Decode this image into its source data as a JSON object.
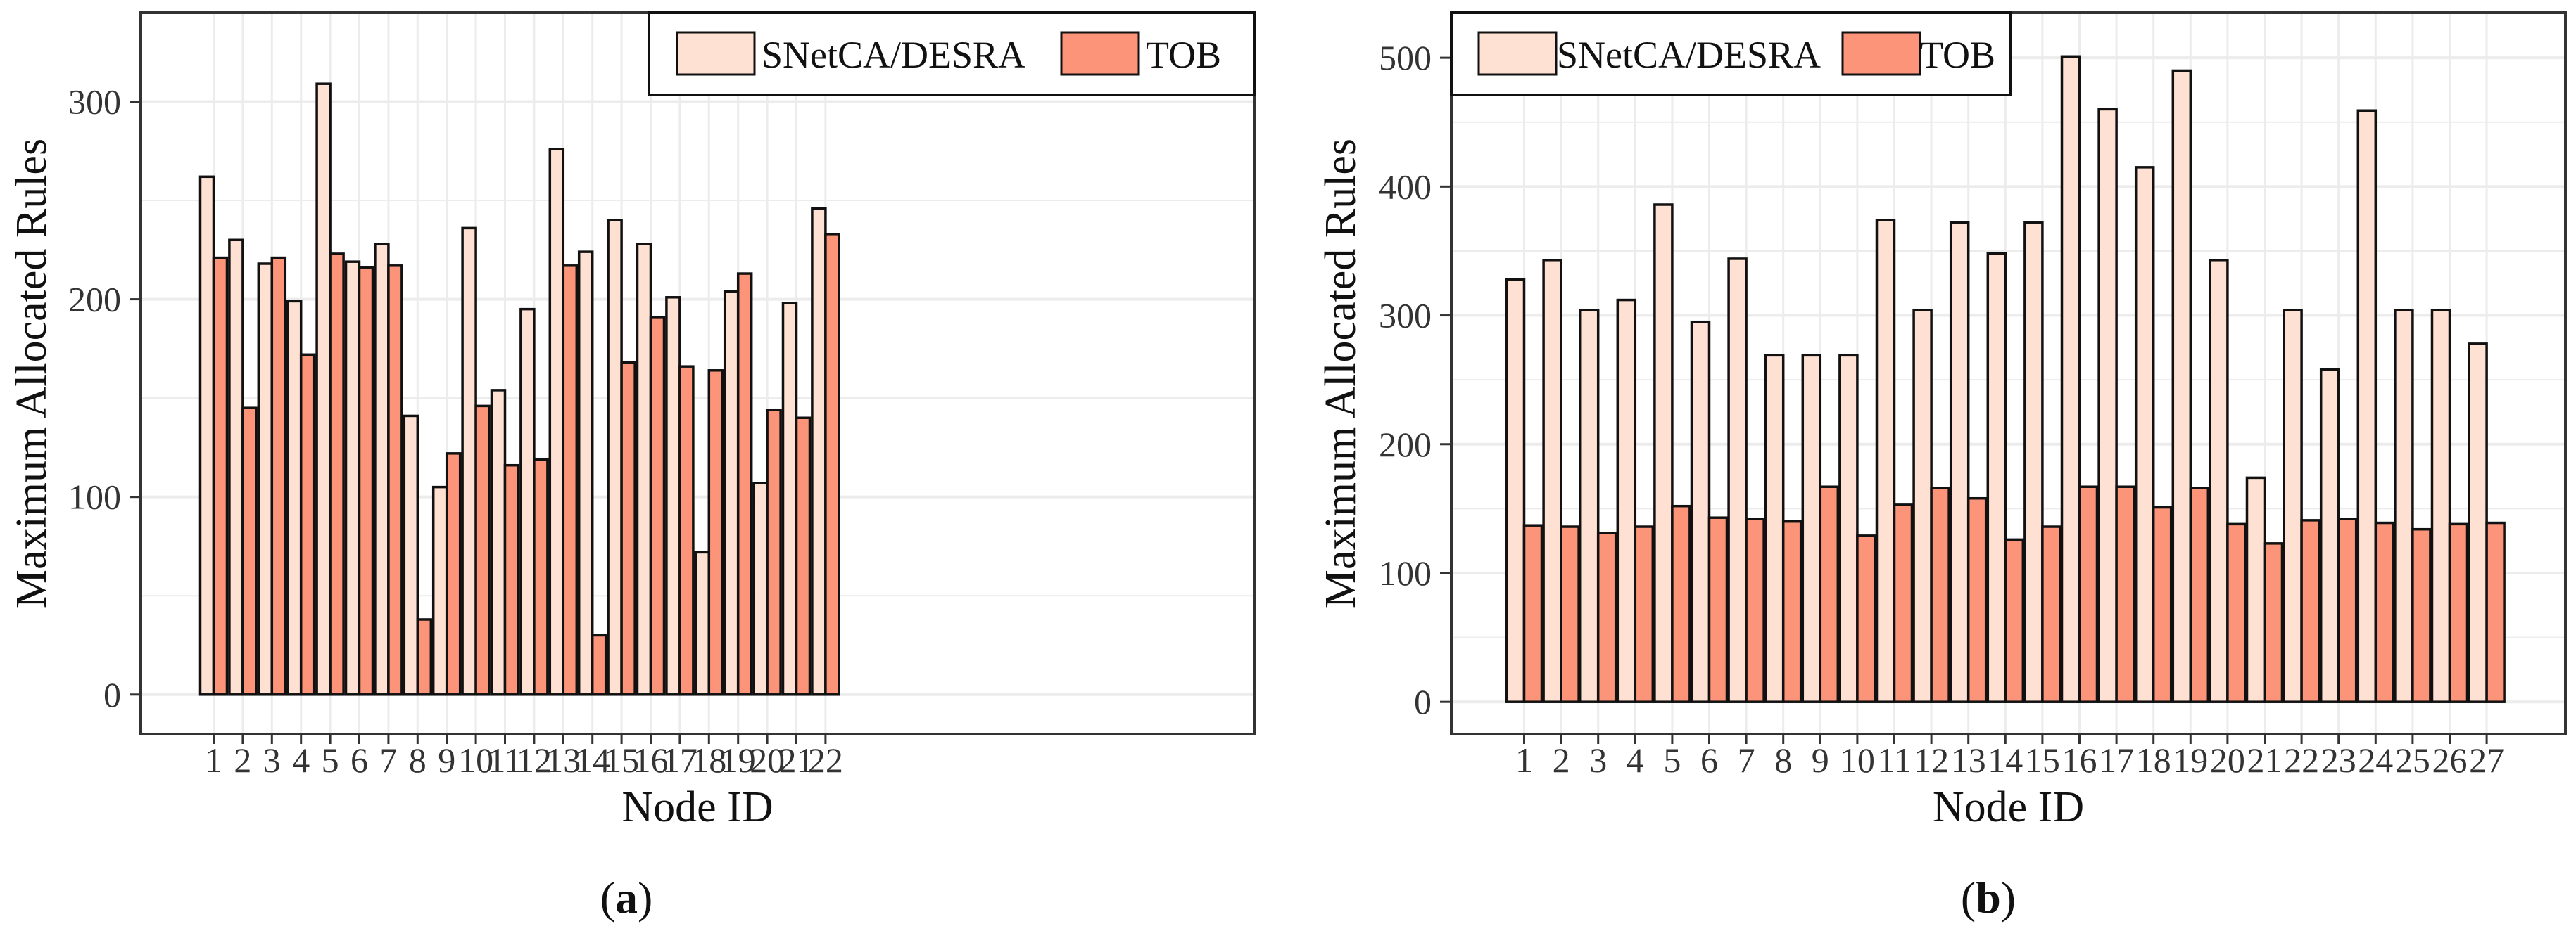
{
  "colors": {
    "series_a": "#FFE1D3",
    "series_b": "#FB9479",
    "stroke": "#111111",
    "grid": "#ECECEC",
    "panel_border": "#333333"
  },
  "chart_data": [
    {
      "type": "bar",
      "caption_letter": "a",
      "xlabel": "Node ID",
      "ylabel": "Maximum Allocated Rules",
      "ylim": [
        -20,
        345
      ],
      "yticks": [
        0,
        100,
        200,
        300
      ],
      "legend": {
        "position": "top-right",
        "entries": [
          "SNetCA/DESRA",
          "TOB"
        ]
      },
      "grid": true,
      "categories": [
        "1",
        "2",
        "3",
        "4",
        "5",
        "6",
        "7",
        "8",
        "9",
        "10",
        "11",
        "12",
        "13",
        "14",
        "15",
        "16",
        "17",
        "18",
        "19",
        "20",
        "21",
        "22"
      ],
      "series": [
        {
          "name": "SNetCA/DESRA",
          "values": [
            262,
            230,
            218,
            199,
            309,
            219,
            228,
            141,
            105,
            236,
            154,
            195,
            276,
            224,
            240,
            228,
            201,
            72,
            204,
            107,
            198,
            246
          ]
        },
        {
          "name": "TOB",
          "values": [
            221,
            145,
            221,
            172,
            223,
            216,
            217,
            38,
            122,
            146,
            116,
            119,
            217,
            30,
            168,
            191,
            166,
            164,
            213,
            144,
            140,
            233
          ]
        }
      ]
    },
    {
      "type": "bar",
      "caption_letter": "b",
      "xlabel": "Node ID",
      "ylabel": "Maximum Allocated Rules",
      "ylim": [
        -25,
        535
      ],
      "yticks": [
        0,
        100,
        200,
        300,
        400,
        500
      ],
      "legend": {
        "position": "top-left",
        "entries": [
          "SNetCA/DESRA",
          "TOB"
        ]
      },
      "grid": true,
      "categories": [
        "1",
        "2",
        "3",
        "4",
        "5",
        "6",
        "7",
        "8",
        "9",
        "10",
        "11",
        "12",
        "13",
        "14",
        "15",
        "16",
        "17",
        "18",
        "19",
        "20",
        "21",
        "22",
        "23",
        "24",
        "25",
        "26",
        "27"
      ],
      "tick_labels": [
        "1",
        "2",
        "3",
        "4",
        "5",
        "6",
        "7",
        "8",
        "9",
        "10",
        "11",
        "12",
        "13",
        "14",
        "15",
        "16",
        "17",
        "18",
        "19",
        "20",
        "21",
        "22",
        "23",
        "24",
        "25",
        "26",
        "27"
      ],
      "series": [
        {
          "name": "SNetCA/DESRA",
          "values": [
            328,
            343,
            304,
            312,
            386,
            295,
            344,
            269,
            269,
            269,
            374,
            304,
            372,
            348,
            372,
            501,
            460,
            415,
            490,
            343,
            174,
            304,
            258,
            459,
            304,
            304,
            278
          ]
        },
        {
          "name": "TOB",
          "values": [
            137,
            136,
            131,
            136,
            152,
            143,
            142,
            140,
            167,
            129,
            153,
            166,
            158,
            126,
            136,
            167,
            167,
            151,
            166,
            138,
            123,
            141,
            142,
            139,
            134,
            138,
            139
          ]
        }
      ]
    }
  ]
}
